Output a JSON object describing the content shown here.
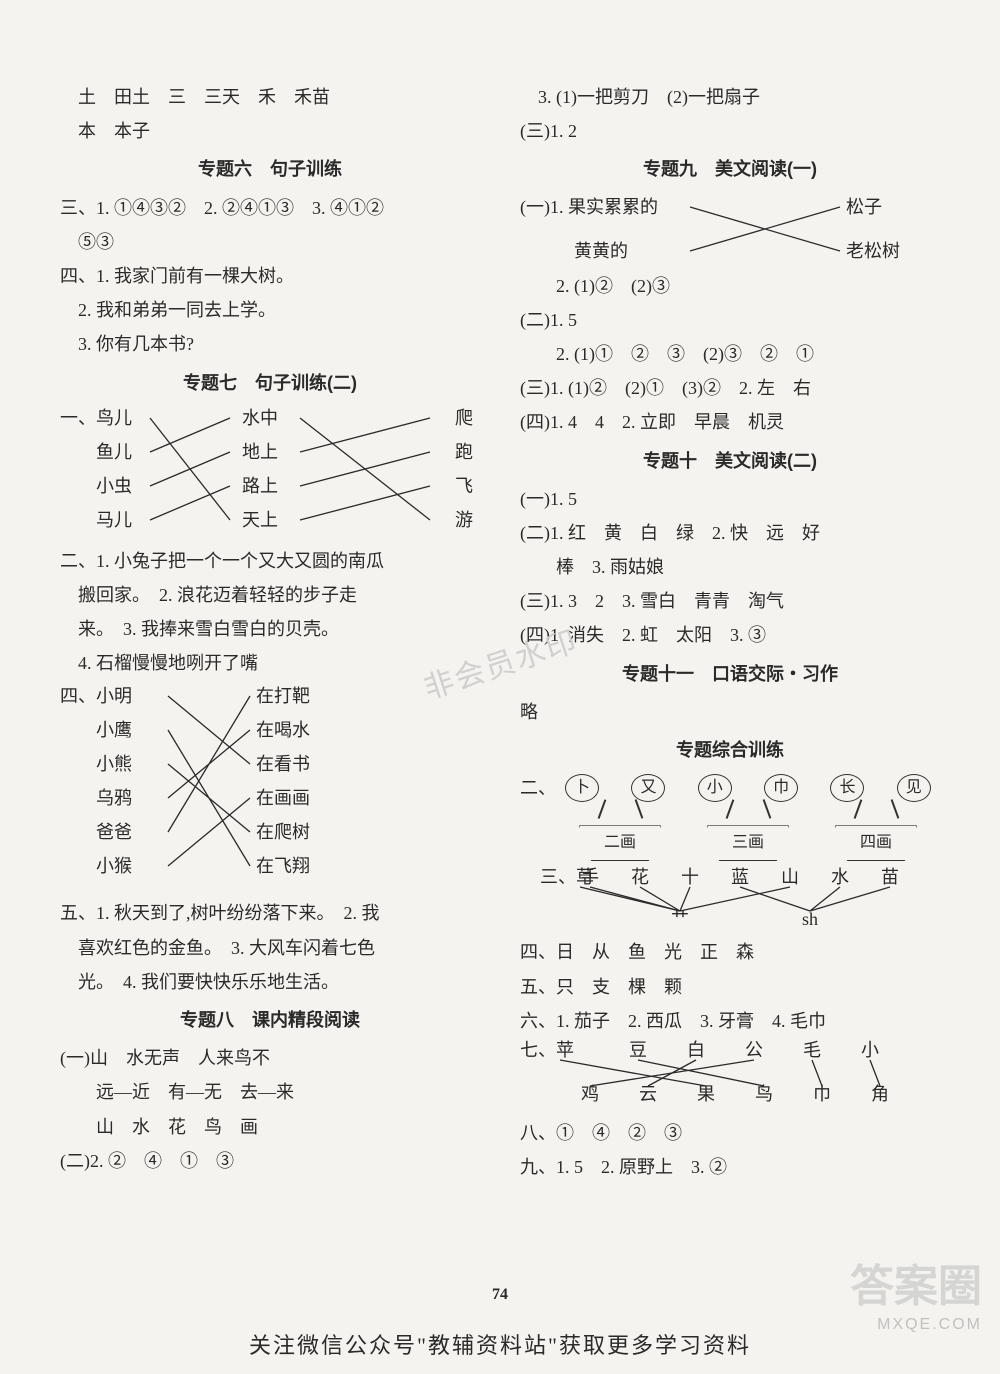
{
  "page_number": "74",
  "watermark_center": "非会员水印",
  "watermark_brand": "答案圈",
  "watermark_url": "MXQE.COM",
  "bottom_banner": "关注微信公众号\"教辅资料站\"获取更多学习资料",
  "left": {
    "l1": "　土　田土　三　三天　禾　禾苗",
    "l2": "　本　本子",
    "t6": "专题六　句子训练",
    "l3": "三、1. ①④③②　2. ②④①③　3. ④①②",
    "l4": "　⑤③",
    "l5": "四、1. 我家门前有一棵大树。",
    "l6": "　2. 我和弟弟一同去上学。",
    "l7": "　3. 你有几本书?",
    "t7": "专题七　句子训练(二)",
    "match1": {
      "left": [
        "一、鸟儿",
        "　　鱼儿",
        "　　小虫",
        "　　马儿"
      ],
      "mid": [
        "水中",
        "地上",
        "路上",
        "天上"
      ],
      "right": [
        "爬",
        "跑",
        "飞",
        "游"
      ],
      "links_lm": [
        [
          0,
          3
        ],
        [
          1,
          0
        ],
        [
          2,
          1
        ],
        [
          3,
          2
        ]
      ],
      "links_mr": [
        [
          0,
          3
        ],
        [
          1,
          0
        ],
        [
          2,
          1
        ],
        [
          3,
          2
        ]
      ]
    },
    "l8": "二、1. 小兔子把一个一个又大又圆的南瓜",
    "l9": "　搬回家。　2. 浪花迈着轻轻的步子走",
    "l10": "　来。　3. 我捧来雪白雪白的贝壳。",
    "l11": "　4. 石榴慢慢地咧开了嘴",
    "match2": {
      "left": [
        "四、小明",
        "　　小鹰",
        "　　小熊",
        "　　乌鸦",
        "　　爸爸",
        "　　小猴"
      ],
      "right": [
        "在打靶",
        "在喝水",
        "在看书",
        "在画画",
        "在爬树",
        "在飞翔"
      ],
      "links": [
        [
          0,
          2
        ],
        [
          1,
          5
        ],
        [
          2,
          4
        ],
        [
          3,
          1
        ],
        [
          4,
          0
        ],
        [
          5,
          3
        ]
      ]
    },
    "l12": "五、1. 秋天到了,树叶纷纷落下来。　2. 我",
    "l13": "　喜欢红色的金鱼。　3. 大风车闪着七色",
    "l14": "　光。　4. 我们要快快乐乐地生活。",
    "t8": "专题八　课内精段阅读",
    "l15": "(一)山　水无声　人来鸟不",
    "l16": "　　远—近　有—无　去—来",
    "l17": "　　山　水　花　鸟　画",
    "l18": "(二)2. ②　④　①　③"
  },
  "right": {
    "r1": "　3. (1)一把剪刀　(2)一把扇子",
    "r2": "(三)1. 2",
    "t9": "专题九　美文阅读(一)",
    "match3": {
      "left": [
        "(一)1. 果实累累的",
        "　　　黄黄的"
      ],
      "right": [
        "松子",
        "老松树"
      ],
      "links": [
        [
          0,
          1
        ],
        [
          1,
          0
        ]
      ]
    },
    "r3": "　　2. (1)②　(2)③",
    "r4": "(二)1. 5",
    "r5": "　　2. (1)①　②　③　(2)③　②　①",
    "r6": "(三)1. (1)②　(2)①　(3)②　2. 左　右",
    "r7": "(四)1. 4　4　2. 立即　早晨　机灵",
    "t10": "专题十　美文阅读(二)",
    "r8": "(一)1. 5",
    "r9": "(二)1. 红　黄　白　绿　2. 快　远　好",
    "r10": "　　棒　3. 雨姑娘",
    "r11": "(三)1. 3　2　3. 雪白　青青　淘气",
    "r12": "(四)1. 消失　2. 虹　太阳　3. ③",
    "t11": "专题十一　口语交际・习作",
    "r13": "略",
    "tz": "专题综合训练",
    "q2_prefix": "二、",
    "q2_ovals": [
      "卜",
      "又",
      "小",
      "巾",
      "长",
      "见"
    ],
    "q2_buckets": [
      "二画",
      "三画",
      "四画"
    ],
    "q3": {
      "top": [
        "三、草",
        "手",
        "花",
        "十",
        "蓝",
        "山",
        "水",
        "苗"
      ],
      "bottom_left": "艹",
      "bottom_right": "sh"
    },
    "r14": "四、日　从　鱼　光　正　森",
    "r15": "五、只　支　棵　颗",
    "r16": "六、1. 茄子　2. 西瓜　3. 牙膏　4. 毛巾",
    "q7": {
      "top": [
        "七、苹",
        "豆",
        "白",
        "公",
        "毛",
        "小"
      ],
      "bottom": [
        "鸡",
        "云",
        "果",
        "鸟",
        "巾",
        "角"
      ],
      "links": [
        [
          0,
          2
        ],
        [
          1,
          3
        ],
        [
          2,
          1
        ],
        [
          3,
          0
        ],
        [
          4,
          4
        ],
        [
          5,
          5
        ]
      ]
    },
    "r17": "八、①　④　②　③",
    "r18": "九、1. 5　2. 原野上　3. ②"
  }
}
